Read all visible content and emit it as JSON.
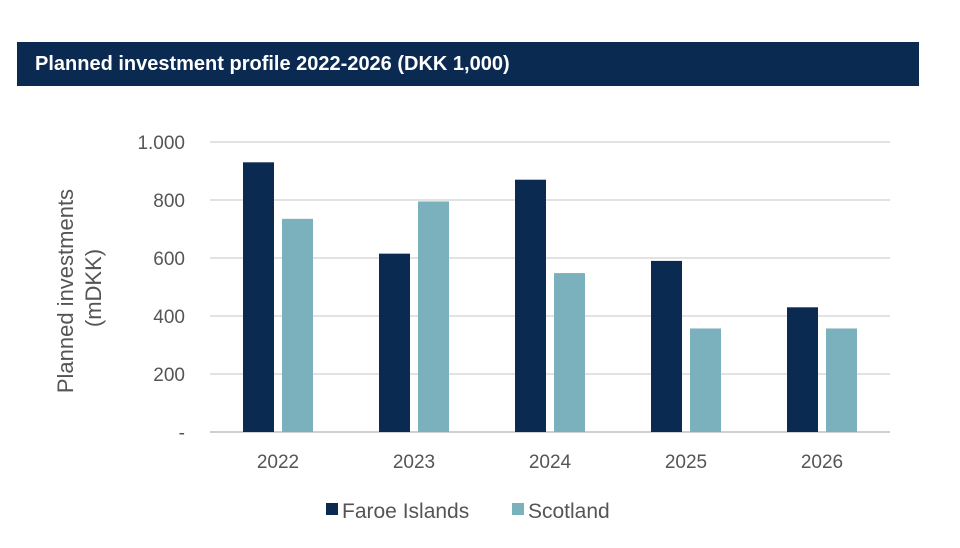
{
  "header": {
    "title": "Planned investment profile 2022-2026 (DKK 1,000)"
  },
  "chart_data": {
    "type": "bar",
    "title": "Planned investment profile 2022-2026 (DKK 1,000)",
    "xlabel": "",
    "ylabel_lines": [
      "Planned investments",
      "(mDKK)"
    ],
    "categories": [
      "2022",
      "2023",
      "2024",
      "2025",
      "2026"
    ],
    "series": [
      {
        "name": "Faroe Islands",
        "color": "#0a2a52",
        "values": [
          930,
          615,
          870,
          590,
          430
        ]
      },
      {
        "name": "Scotland",
        "color": "#7ab1bd",
        "values": [
          735,
          795,
          548,
          357,
          357
        ]
      }
    ],
    "ylim": [
      0,
      1000
    ],
    "yticks": [
      {
        "value": 0,
        "label": "-"
      },
      {
        "value": 200,
        "label": "200"
      },
      {
        "value": 400,
        "label": "400"
      },
      {
        "value": 600,
        "label": "600"
      },
      {
        "value": 800,
        "label": "800"
      },
      {
        "value": 1000,
        "label": "1.000"
      }
    ],
    "grid": true,
    "legend_position": "bottom-center"
  }
}
